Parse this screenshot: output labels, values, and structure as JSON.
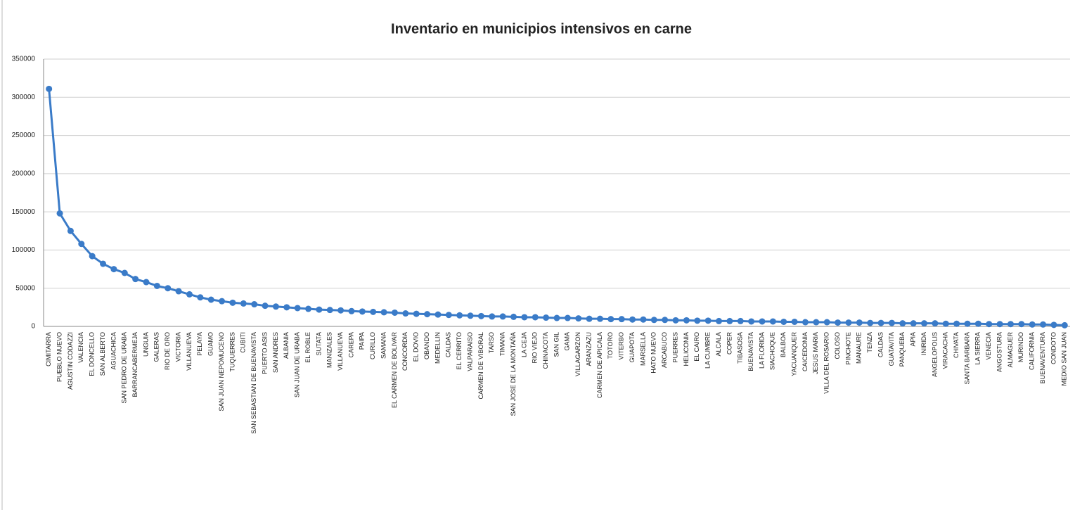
{
  "chart_data": {
    "type": "line",
    "title": "Inventario en municipios intensivos en carne",
    "categories": [
      "CIMITARRA",
      "PUEBLO NUEVO",
      "AGUSTIN CODAZZI",
      "VALENCIA",
      "EL DONCELLO",
      "SAN ALBERTO",
      "AGUACHICA",
      "SAN PEDRO DE URABA",
      "BARRANCABERMEJA",
      "UNGUIA",
      "GALERAS",
      "RIO DE ORO",
      "VICTORIA",
      "VILLANUEVA",
      "PELAYA",
      "GUAMO",
      "SAN JUAN NEPOMUCENO",
      "TUQUERRES",
      "CUBITI",
      "SAN SEBASTIAN DE BUENAVISTA",
      "PUERTO ASIS",
      "SAN ANDRES",
      "ALBANIA",
      "SAN JUAN DE URABA",
      "EL ROBLE",
      "SUTATA",
      "MANIZALES",
      "VILLANUEVA",
      "CAREPA",
      "PAIPA",
      "CURILLO",
      "SAMANA",
      "EL CARMEN DE BOLIVAR",
      "CONCORDIA",
      "EL DOVIO",
      "OBANDO",
      "MEDELLIN",
      "CALDAS",
      "EL CERRITO",
      "VALPARAISO",
      "CARMEN DE VIBORAL",
      "TARSO",
      "TIMANA",
      "SAN JOSE DE LA MONTAÑA",
      "LA CEJA",
      "RIO VIEJO",
      "CHINACOTA",
      "SAN GIL",
      "GAMA",
      "VILLAGARZON",
      "ARANZAZU",
      "CARMEN DE APICALA",
      "TOTORO",
      "VITERBO",
      "GUAPOTA",
      "MARSELLA",
      "HATO NUEVO",
      "ARCABUCO",
      "PUERRES",
      "HELICONIA",
      "EL CAIRO",
      "LA CUMBRE",
      "ALCALA",
      "COPER",
      "TIBASOSA",
      "BUENAVISTA",
      "LA FLORIDA",
      "SIACHOQUE",
      "BALBOA",
      "YACUANQUER",
      "CAICEDONIA",
      "JESUS MARIA",
      "VILLA DEL ROSARIO",
      "COLOSO",
      "PINCHOTE",
      "MANAURE",
      "TENZA",
      "CALDAS",
      "GUATAVITA",
      "PANQUEBA",
      "APIA",
      "INIRIDA",
      "ANGELOPOLIS",
      "VIRACACHA",
      "CHIVATA",
      "SANTA BARBARA",
      "LA SIERRA",
      "VENECIA",
      "ANGOSTURA",
      "ALMAGUER",
      "MURINDO",
      "CALIFORNIA",
      "BUENAVENTURA",
      "CONDOTO",
      "MEDIO SAN JUAN"
    ],
    "series": [
      {
        "name": "Inventario",
        "color": "#3a7bc8",
        "values": [
          311000,
          148000,
          125000,
          108000,
          92000,
          82000,
          75000,
          70000,
          62000,
          58000,
          53000,
          50000,
          46000,
          42000,
          38000,
          35000,
          33000,
          31000,
          30000,
          29000,
          27000,
          26000,
          25000,
          24000,
          23000,
          22000,
          21500,
          21000,
          20000,
          19500,
          19000,
          18500,
          18000,
          17000,
          16500,
          16000,
          15500,
          15000,
          14500,
          14000,
          13500,
          13000,
          13000,
          12500,
          12000,
          12000,
          11500,
          11000,
          11000,
          10500,
          10000,
          10000,
          9500,
          9500,
          9000,
          9000,
          8500,
          8500,
          8000,
          8000,
          7500,
          7500,
          7000,
          7000,
          7000,
          6500,
          6500,
          6500,
          6000,
          6000,
          5500,
          5500,
          5500,
          5000,
          5000,
          5000,
          4500,
          4500,
          4500,
          4000,
          4000,
          4000,
          4000,
          3500,
          3500,
          3500,
          3500,
          3000,
          3000,
          3000,
          3000,
          2500,
          2500,
          2000,
          1500
        ]
      }
    ],
    "ylim": [
      0,
      350000
    ],
    "yticks": [
      0,
      50000,
      100000,
      150000,
      200000,
      250000,
      300000,
      350000
    ],
    "grid": true
  }
}
